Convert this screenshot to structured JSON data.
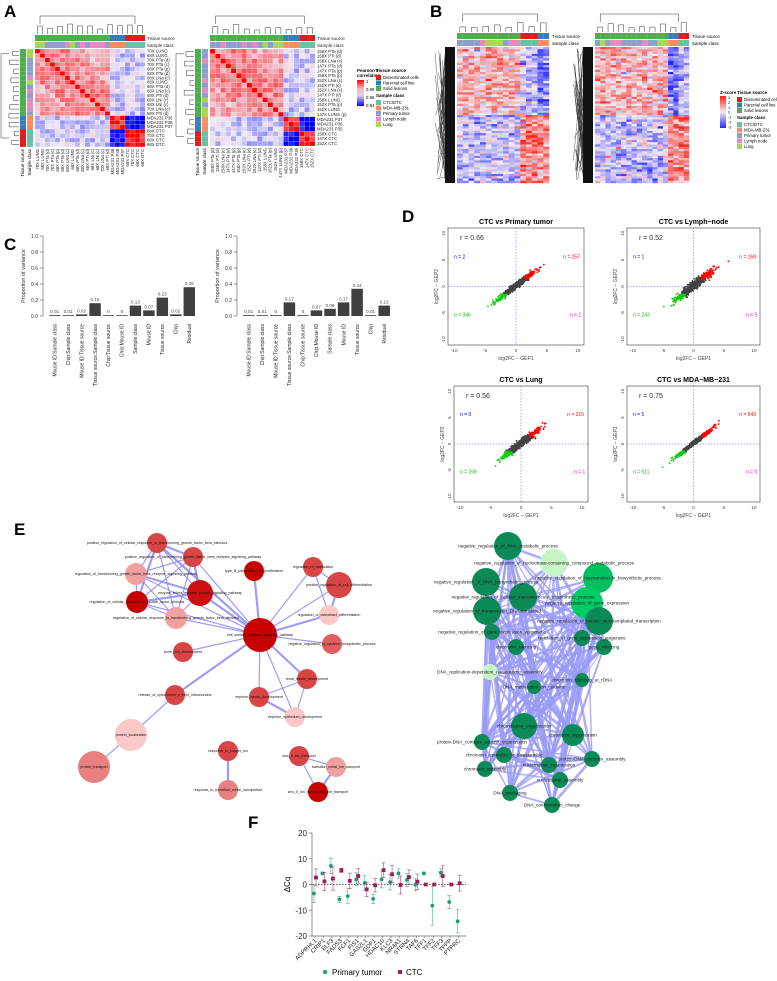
{
  "panels": {
    "A": "A",
    "B": "B",
    "C": "C",
    "D": "D",
    "E": "E",
    "F": "F"
  },
  "annotation_labels": {
    "tissue_source": "Tissue source",
    "sample_class": "Sample class"
  },
  "legends": {
    "pearson_title": "Pearson's correlation",
    "pearson_ticks": [
      "1",
      "0.98",
      "0.96",
      "0.94"
    ],
    "zscore_title": "Z-score",
    "zscore_ticks": [
      "3",
      "2",
      "1",
      "0",
      "-1",
      "-2",
      "-3"
    ],
    "tissue_source": {
      "title": "Tissue source",
      "items": [
        {
          "label": "Disseminated cells",
          "color": "#e41a1c"
        },
        {
          "label": "Parental cell line",
          "color": "#377eb8"
        },
        {
          "label": "Solid lesions",
          "color": "#4daf4a"
        }
      ]
    },
    "sample_class": {
      "title": "Sample class",
      "items": [
        {
          "label": "CTC/DTC",
          "color": "#66c2a5"
        },
        {
          "label": "MDA-MB-231",
          "color": "#fc8d62"
        },
        {
          "label": "Primary tumor",
          "color": "#8da0cb"
        },
        {
          "label": "Lymph node",
          "color": "#e78ac3"
        },
        {
          "label": "Lung",
          "color": "#a6d854"
        }
      ]
    }
  },
  "chart_data": [
    {
      "panel": "A",
      "type": "heatmap",
      "title": "Pearson correlation (left)",
      "scale": [
        0.94,
        1
      ],
      "rows": [
        "70X LUNG",
        "68X LUNG",
        "70X PTa (d)",
        "70X PTa (c)",
        "68X PTa (p)",
        "68X PTa (d)",
        "68X LNa (c)",
        "68X LUNG",
        "68X PTa (d)",
        "68X LNa (c)",
        "68X PTi (d)",
        "68X LNi (c)",
        "68X LNi (c)",
        "70X LNa (c)",
        "68X PTi (d)",
        "MDA231 P36",
        "MDA231 P38",
        "MDA231 P37",
        "68X CTC",
        "70X CTC",
        "68X CTC",
        "68X DTC"
      ]
    },
    {
      "panel": "A",
      "type": "heatmap",
      "title": "Pearson correlation (right)",
      "scale": [
        0.94,
        1
      ],
      "rows": [
        "158X PTa (d)",
        "158X PTi (d)",
        "158X LNa (c)",
        "147X PTa (d)",
        "147X PTa (p)",
        "158X PTa (p)",
        "152X LNa (c)",
        "152X PTi (d)",
        "152X LNa (c)",
        "147X PTi (d)",
        "158X LUNG",
        "152X PTa (p)",
        "152X LUNG",
        "147X LUNG (p)",
        "MDA231 P37",
        "MDA231 P36",
        "MDA231 P35",
        "158X CTC",
        "147X CTC",
        "152X CTC"
      ]
    },
    {
      "panel": "B",
      "type": "heatmap",
      "title": "Z-score heatmap (left)",
      "scale": [
        -3,
        3
      ],
      "column_classes": [
        "Primary tumor",
        "Primary tumor",
        "Primary tumor",
        "Primary tumor",
        "Lymph node",
        "Lung",
        "Lung",
        "Lung",
        "Primary tumor",
        "Lymph node",
        "Lymph node",
        "CTC/DTC",
        "CTC/DTC",
        "CTC/DTC",
        "MDA-MB-231",
        "MDA-MB-231"
      ]
    },
    {
      "panel": "B",
      "type": "heatmap",
      "title": "Z-score heatmap (right)",
      "scale": [
        -3,
        3
      ],
      "column_classes": [
        "Primary tumor",
        "Lung",
        "Primary tumor",
        "Lymph node",
        "Lymph node",
        "Primary tumor",
        "Primary tumor",
        "Primary tumor",
        "Primary tumor",
        "Lymph node",
        "Primary tumor",
        "Primary tumor",
        "Lung",
        "Lung",
        "MDA-MB-231",
        "MDA-MB-231",
        "CTC/DTC",
        "CTC/DTC"
      ]
    },
    {
      "panel": "C",
      "type": "bar",
      "ylabel": "Proportion of variance",
      "ylim": [
        0,
        1
      ],
      "yticks": [
        "0.0",
        "0.2",
        "0.4",
        "0.6",
        "0.8",
        "1.0"
      ],
      "categories": [
        "Mouse ID:Sample class",
        "Chip:Sample class",
        "Mouse ID:Tissue source",
        "Tissue source:Sample class",
        "Chip:Tissue source",
        "Chip:Mouse ID",
        "Sample class",
        "Mouse ID",
        "Tissue source",
        "Chip",
        "Residual"
      ],
      "values": [
        0.01,
        0.01,
        0.02,
        0.16,
        0,
        0,
        0.13,
        0.07,
        0.23,
        0.02,
        0.36
      ],
      "value_labels": [
        "0.01",
        "0.01",
        "0.02",
        "0.16",
        "0",
        "0",
        "0.13",
        "0.07",
        "0.23",
        "0.02",
        "0.36"
      ]
    },
    {
      "panel": "C",
      "type": "bar",
      "ylabel": "Proportion of variance",
      "ylim": [
        0,
        1
      ],
      "yticks": [
        "0.0",
        "0.2",
        "0.4",
        "0.6",
        "0.8",
        "1.0"
      ],
      "categories": [
        "Mouse ID:Sample class",
        "Chip:Sample class",
        "Mouse ID:Tissue source",
        "Tissue source:Sample class",
        "Chip:Tissue source",
        "Chip:Mouse ID",
        "Sample class",
        "Mouse ID",
        "Tissue source",
        "Chip",
        "Residual"
      ],
      "values": [
        0.01,
        0.01,
        0,
        0.17,
        0,
        0.07,
        0.09,
        0.17,
        0.34,
        0.01,
        0.13
      ],
      "value_labels": [
        "0.01",
        "0.01",
        "0",
        "0.17",
        "0",
        "0.07",
        "0.09",
        "0.17",
        "0.34",
        "0.01",
        "0.13"
      ]
    },
    {
      "panel": "D",
      "type": "scatter",
      "plots": [
        {
          "title": "CTC vs Primary tumor",
          "r": "r = 0.66",
          "n_ul": "n = 2",
          "n_ur": "n = 257",
          "n_ll": "n = 346",
          "n_lr": "n = 1",
          "corr": 0.66
        },
        {
          "title": "CTC vs Lymph−node",
          "r": "r = 0.52",
          "n_ul": "n = 1",
          "n_ur": "n = 168",
          "n_ll": "n = 243",
          "n_lr": "n = 5",
          "corr": 0.52
        },
        {
          "title": "CTC vs Lung",
          "r": "r = 0.56",
          "n_ul": "n = 0",
          "n_ur": "n = 215",
          "n_ll": "n = 268",
          "n_lr": "n = 1",
          "corr": 0.56
        },
        {
          "title": "CTC vs MDA−MB−231",
          "r": "r = 0.75",
          "n_ul": "n = 5",
          "n_ur": "n = 543",
          "n_ll": "n = 611",
          "n_lr": "n = 0",
          "corr": 0.75
        }
      ],
      "xlabel": "log2FC − GEP1",
      "ylabel": "log2FC − GEP2",
      "xlim": [
        -11,
        11
      ],
      "ylim": [
        -11,
        11
      ],
      "ticks": [
        "-10",
        "-5",
        "0",
        "5",
        "10"
      ]
    },
    {
      "panel": "F",
      "type": "scatter",
      "ylabel": "ΔCq",
      "ylim": [
        -20,
        20
      ],
      "yticks": [
        "-20",
        "-10",
        "0",
        "10",
        "20"
      ],
      "categories": [
        "ADPRHL1",
        "CRIP1",
        "ELF3",
        "FADS3",
        "FCF1",
        "FIS1",
        "GAS2L1",
        "GDF1",
        "HDAC10",
        "KLC3",
        "NR4A1",
        "STRN4",
        "TAF6",
        "TFF1",
        "TFF2",
        "TFF3",
        "TPPP",
        "PTPRC"
      ],
      "series": [
        {
          "name": "Primary tumor",
          "color": "#1a9e77",
          "values": [
            -3.5,
            4.3,
            7.2,
            -5.8,
            -4.5,
            2.0,
            0.6,
            -5.6,
            2.0,
            0.9,
            4.3,
            1.8,
            -0.1,
            4.3,
            -8.2,
            4.6,
            -6.8,
            -14.3
          ],
          "errors": [
            3.5,
            0.5,
            3.0,
            1.2,
            2.8,
            2.5,
            2.8,
            1.8,
            3.3,
            3.0,
            1.8,
            2.5,
            2.3,
            0.5,
            7.6,
            1.5,
            2.5,
            4.5
          ]
        },
        {
          "name": "CTC",
          "color": "#a3195b",
          "values": [
            2.7,
            1.2,
            2.3,
            5.5,
            1.4,
            3.3,
            -1.9,
            -0.3,
            5.6,
            4.0,
            -0.2,
            2.9,
            1.1,
            0,
            0,
            3.3,
            0,
            0.5
          ],
          "errors": [
            3.3,
            3.5,
            4.5,
            0.8,
            3.0,
            2.8,
            2.8,
            2.6,
            2.8,
            3.3,
            3.5,
            2.8,
            3.0,
            0,
            0,
            4.0,
            0,
            3.0
          ]
        }
      ]
    }
  ],
  "network_left": {
    "nodes": [
      "positive_regulation_of_cellular_response_to_transforming_growth_factor_beta_stimulus",
      "positive_regulation_of_transforming_growth_factor_beta_receptor_signaling_pathway",
      "regulation_of_transforming_growth_factor_beta_receptor_signaling_pathway",
      "type_B_pancreatic_cell_proliferation",
      "regulation_of_ossification",
      "positive_regulation_of_cell_differentiation",
      "enzyme_linked_receptor_protein_signaling_pathway",
      "regulation_of_cellular_response_to_growth_factor_stimulus",
      "regulation_of_cellular_response_to_transforming_growth_factor_beta_stimulus",
      "regulation_of_osteoblast_differentiation",
      "cell_surface_receptor_signaling_pathway",
      "negative_regulation_of_cytokine_biosynthetic_process",
      "bone_cell_development",
      "renal_tubule_development",
      "release_of_cytochrome_c_from_mitochondria",
      "nephron_tubule_development",
      "nephron_epithelium_development",
      "protein_localization",
      "protein_transport",
      "response_to_copper_ion",
      "response_to_transition_metal_nanoparticle",
      "zinc_II_ion_transport",
      "transition_metal_ion_transport",
      "zinc_II_ion_transmembrane_transport"
    ],
    "colors": [
      "#d94545",
      "#d94545",
      "#f1a0a0",
      "#c80000",
      "#d94545",
      "#d94545",
      "#cc1010",
      "#c80000",
      "#f1a0a0",
      "#fbc8c8",
      "#c80000",
      "#e06060",
      "#d94545",
      "#d94545",
      "#d94545",
      "#d94545",
      "#fbc8c8",
      "#fbc8c8",
      "#e88080",
      "#d94545",
      "#e88080",
      "#d94545",
      "#f1a0a0",
      "#c80000"
    ],
    "edges": [
      [
        0,
        1
      ],
      [
        0,
        2
      ],
      [
        0,
        6
      ],
      [
        0,
        7
      ],
      [
        0,
        8
      ],
      [
        1,
        2
      ],
      [
        1,
        6
      ],
      [
        1,
        7
      ],
      [
        1,
        8
      ],
      [
        2,
        6
      ],
      [
        2,
        7
      ],
      [
        2,
        8
      ],
      [
        6,
        7
      ],
      [
        6,
        8
      ],
      [
        7,
        8
      ],
      [
        0,
        10
      ],
      [
        1,
        10
      ],
      [
        2,
        10
      ],
      [
        6,
        10
      ],
      [
        7,
        10
      ],
      [
        8,
        10
      ],
      [
        3,
        10
      ],
      [
        4,
        5
      ],
      [
        4,
        9
      ],
      [
        5,
        9
      ],
      [
        4,
        10
      ],
      [
        5,
        10
      ],
      [
        9,
        10
      ],
      [
        10,
        11
      ],
      [
        10,
        12
      ],
      [
        10,
        13
      ],
      [
        10,
        15
      ],
      [
        10,
        16
      ],
      [
        10,
        14
      ],
      [
        13,
        15
      ],
      [
        13,
        16
      ],
      [
        15,
        16
      ],
      [
        14,
        17
      ],
      [
        17,
        18
      ],
      [
        19,
        20
      ],
      [
        21,
        22
      ],
      [
        21,
        23
      ],
      [
        22,
        23
      ]
    ]
  },
  "network_right": {
    "nodes": [
      "negative_regulation_of_RNA_metabolic_process",
      "negative_regulation_of_nucleobase-containing_compound_metabolic_process",
      "negative_regulation_of_macromolecule_biosynthetic_process",
      "negative_regulation_of_RNA_biosynthetic_process",
      "negative_regulation_of_cellular_macromolecule_biosynthetic_process",
      "negative_regulation_of_gene_expression",
      "negative_regulation_of_transcription_DNA-templated",
      "negative_regulation_of_nucleic_acid-templated_transcription",
      "negative_regulation_of_gene_expression_epigenetic",
      "regulation_of_gene_expression_epigenetic",
      "chromatin_silencing",
      "gene_silencing",
      "DNA_replication-dependent_nucleosome_assembly",
      "chromatin_silencing_at_rDNA",
      "DNA_methylation_on_cytosine",
      "chromosome_organization",
      "chromatin_organization",
      "protein-DNA_complex_subunit_organization",
      "chromatin_assembly_or_disassembly",
      "protein-DNA_complex_assembly",
      "chromatin_assembly",
      "nucleosome_organization",
      "nucleosome_assembly",
      "DNA_packaging",
      "DNA_conformation_change"
    ],
    "colors": [
      "#0a8a55",
      "#c8f5c8",
      "#00c060",
      "#0a8a55",
      "#0a8a55",
      "#00cc66",
      "#0a8a55",
      "#0a8a55",
      "#0a8a55",
      "#0a8a55",
      "#0a8a55",
      "#0a8a55",
      "#c8f5c8",
      "#0a8a55",
      "#0a8a55",
      "#0a8a55",
      "#0a8a55",
      "#0a8a55",
      "#0a8a55",
      "#0a8a55",
      "#0a8a55",
      "#0a8a55",
      "#0a8a55",
      "#0a8a55",
      "#0a8a55"
    ]
  }
}
